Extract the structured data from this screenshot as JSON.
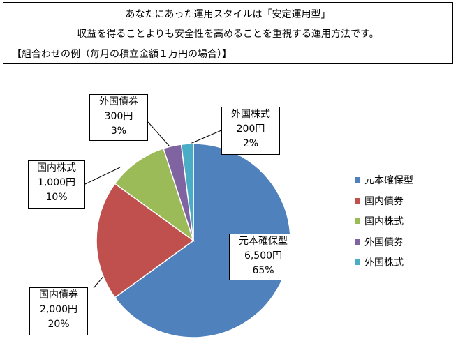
{
  "header": {
    "line1": "あなたにあった運用スタイルは「安定運用型」",
    "line2": "収益を得ることよりも安全性を高めることを重視する運用方法です。",
    "line3": "【組合わせの例（毎月の積立金額１万円の場合）】"
  },
  "chart_data": {
    "type": "pie",
    "title": "",
    "legend_position": "right",
    "slices": [
      {
        "name": "元本確保型",
        "amount": "6,500円",
        "percent_label": "65%",
        "value": 65,
        "color": "#4f81bd"
      },
      {
        "name": "国内債券",
        "amount": "2,000円",
        "percent_label": "20%",
        "value": 20,
        "color": "#c0504d"
      },
      {
        "name": "国内株式",
        "amount": "1,000円",
        "percent_label": "10%",
        "value": 10,
        "color": "#9bbb59"
      },
      {
        "name": "外国債券",
        "amount": "300円",
        "percent_label": "3%",
        "value": 3,
        "color": "#8064a2"
      },
      {
        "name": "外国株式",
        "amount": "200円",
        "percent_label": "2%",
        "value": 2,
        "color": "#4bacc6"
      }
    ]
  }
}
